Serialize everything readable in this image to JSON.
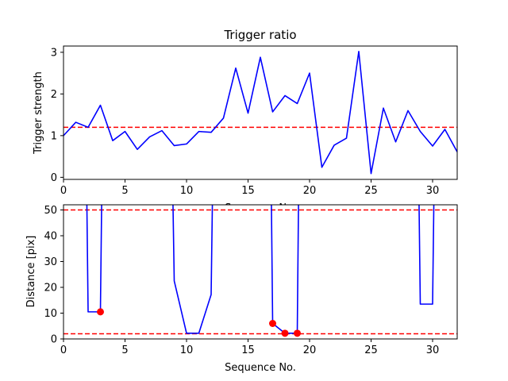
{
  "chart_data": [
    {
      "type": "line",
      "title": "Trigger ratio",
      "xlabel": "Sequence No.",
      "ylabel": "Trigger strength",
      "xlim": [
        0,
        32
      ],
      "ylim": [
        -0.05,
        3.15
      ],
      "xticks": [
        0,
        5,
        10,
        15,
        20,
        25,
        30
      ],
      "yticks": [
        0,
        1,
        2,
        3
      ],
      "grid": false,
      "series": [
        {
          "color": "#0000ff",
          "x": [
            0,
            1,
            2,
            3,
            4,
            5,
            6,
            7,
            8,
            9,
            10,
            11,
            12,
            13,
            14,
            15,
            16,
            17,
            18,
            19,
            20,
            21,
            22,
            23,
            24,
            25,
            26,
            27,
            28,
            29,
            30,
            31,
            32
          ],
          "values": [
            1.0,
            1.32,
            1.2,
            1.73,
            0.88,
            1.1,
            0.67,
            0.97,
            1.12,
            0.76,
            0.8,
            1.1,
            1.08,
            1.42,
            2.62,
            1.54,
            2.88,
            1.57,
            1.96,
            1.77,
            2.5,
            0.24,
            0.77,
            0.94,
            3.02,
            0.09,
            1.66,
            0.85,
            1.6,
            1.1,
            0.75,
            1.15,
            0.61
          ]
        }
      ],
      "reference_lines": [
        {
          "axis": "y",
          "value": 1.2,
          "color": "#ff0000",
          "style": "dashed"
        }
      ]
    },
    {
      "type": "line",
      "title": "",
      "xlabel": "Sequence No.",
      "ylabel": "Distance [pix]",
      "xlim": [
        0,
        32
      ],
      "ylim": [
        0,
        52
      ],
      "xticks": [
        0,
        5,
        10,
        15,
        20,
        25,
        30
      ],
      "yticks": [
        0,
        10,
        20,
        30,
        40,
        50
      ],
      "grid": false,
      "series": [
        {
          "color": "#0000ff",
          "x": [
            1.9,
            2,
            3,
            3.1,
            8.9,
            9,
            10,
            11,
            12,
            12.1,
            16.9,
            17,
            18,
            19,
            19.1,
            28.9,
            29,
            30,
            30.1
          ],
          "values": [
            52,
            10.5,
            10.5,
            52,
            52,
            22.5,
            2.2,
            2.2,
            17.2,
            52,
            52,
            6,
            2.2,
            2.2,
            52,
            52,
            13.5,
            13.5,
            52
          ],
          "segments": [
            [
              0,
              3
            ],
            [
              4,
              9
            ],
            [
              10,
              14
            ],
            [
              15,
              18
            ]
          ]
        }
      ],
      "reference_lines": [
        {
          "axis": "y",
          "value": 50,
          "color": "#ff0000",
          "style": "dashed"
        },
        {
          "axis": "y",
          "value": 2,
          "color": "#ff0000",
          "style": "dashed"
        }
      ],
      "markers": {
        "color": "#ff0000",
        "x": [
          3,
          17,
          18,
          19
        ],
        "values": [
          10.5,
          6,
          2.2,
          2.2
        ]
      }
    }
  ]
}
